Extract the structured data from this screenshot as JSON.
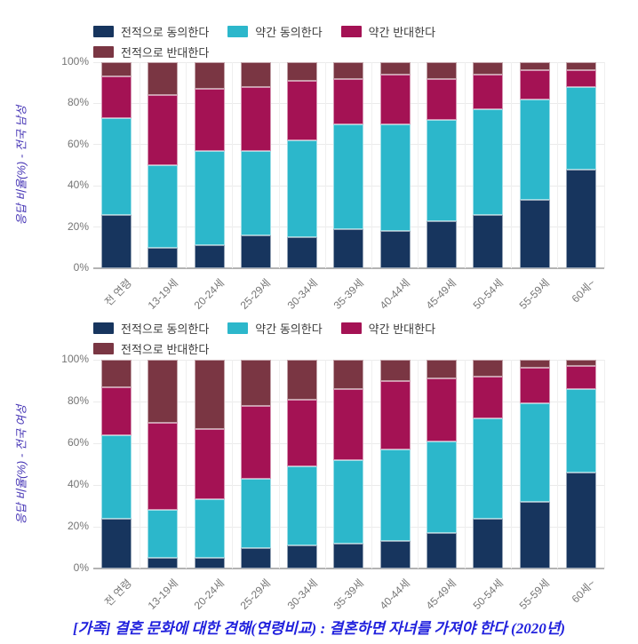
{
  "colors": {
    "strongly_agree": "#17355e",
    "somewhat_agree": "#2cb7cb",
    "somewhat_disagree": "#a41254",
    "strongly_disagree": "#7a3643",
    "grid": "#ebebeb",
    "axis_line": "#b3b3b3",
    "tick_text": "#757575",
    "axis_title": "#4534b5",
    "footer_title": "#2121dd"
  },
  "footer": {
    "title": "[가족] 결혼 문화에 대한 견해(연령비교) : 결혼하면 자녀를 가져야 한다 (2020년)"
  },
  "chart_data": [
    {
      "type": "bar",
      "stacked": true,
      "percent": true,
      "ylabel": "응답 비율(%) - 전국 남성",
      "ylim": [
        0,
        100
      ],
      "yticks": [
        "0%",
        "20%",
        "40%",
        "60%",
        "80%",
        "100%"
      ],
      "grid": true,
      "legend_position": "top",
      "categories": [
        "전 연령",
        "13-19세",
        "20-24세",
        "25-29세",
        "30-34세",
        "35-39세",
        "40-44세",
        "45-49세",
        "50-54세",
        "55-59세",
        "60세~"
      ],
      "series": [
        {
          "name": "전적으로 동의한다",
          "color": "#17355e",
          "values": [
            26,
            10,
            11,
            16,
            15,
            19,
            18,
            23,
            26,
            33,
            48
          ]
        },
        {
          "name": "약간 동의한다",
          "color": "#2cb7cb",
          "values": [
            47,
            40,
            46,
            41,
            47,
            51,
            52,
            49,
            51,
            49,
            40
          ]
        },
        {
          "name": "약간 반대한다",
          "color": "#a41254",
          "values": [
            20,
            34,
            30,
            31,
            29,
            22,
            24,
            20,
            17,
            14,
            8
          ]
        },
        {
          "name": "전적으로 반대한다",
          "color": "#7a3643",
          "values": [
            7,
            16,
            13,
            12,
            9,
            8,
            6,
            8,
            6,
            4,
            4
          ]
        }
      ]
    },
    {
      "type": "bar",
      "stacked": true,
      "percent": true,
      "ylabel": "응답 비율(%) - 전국 여성",
      "ylim": [
        0,
        100
      ],
      "yticks": [
        "0%",
        "20%",
        "40%",
        "60%",
        "80%",
        "100%"
      ],
      "grid": true,
      "legend_position": "top",
      "categories": [
        "전 연령",
        "13-19세",
        "20-24세",
        "25-29세",
        "30-34세",
        "35-39세",
        "40-44세",
        "45-49세",
        "50-54세",
        "55-59세",
        "60세~"
      ],
      "series": [
        {
          "name": "전적으로 동의한다",
          "color": "#17355e",
          "values": [
            24,
            5,
            5,
            10,
            11,
            12,
            13,
            17,
            24,
            32,
            46
          ]
        },
        {
          "name": "약간 동의한다",
          "color": "#2cb7cb",
          "values": [
            40,
            23,
            28,
            33,
            38,
            40,
            44,
            44,
            48,
            47,
            40
          ]
        },
        {
          "name": "약간 반대한다",
          "color": "#a41254",
          "values": [
            23,
            42,
            34,
            35,
            32,
            34,
            33,
            30,
            20,
            17,
            11
          ]
        },
        {
          "name": "전적으로 반대한다",
          "color": "#7a3643",
          "values": [
            13,
            30,
            33,
            22,
            19,
            14,
            10,
            9,
            8,
            4,
            3
          ]
        }
      ]
    }
  ]
}
